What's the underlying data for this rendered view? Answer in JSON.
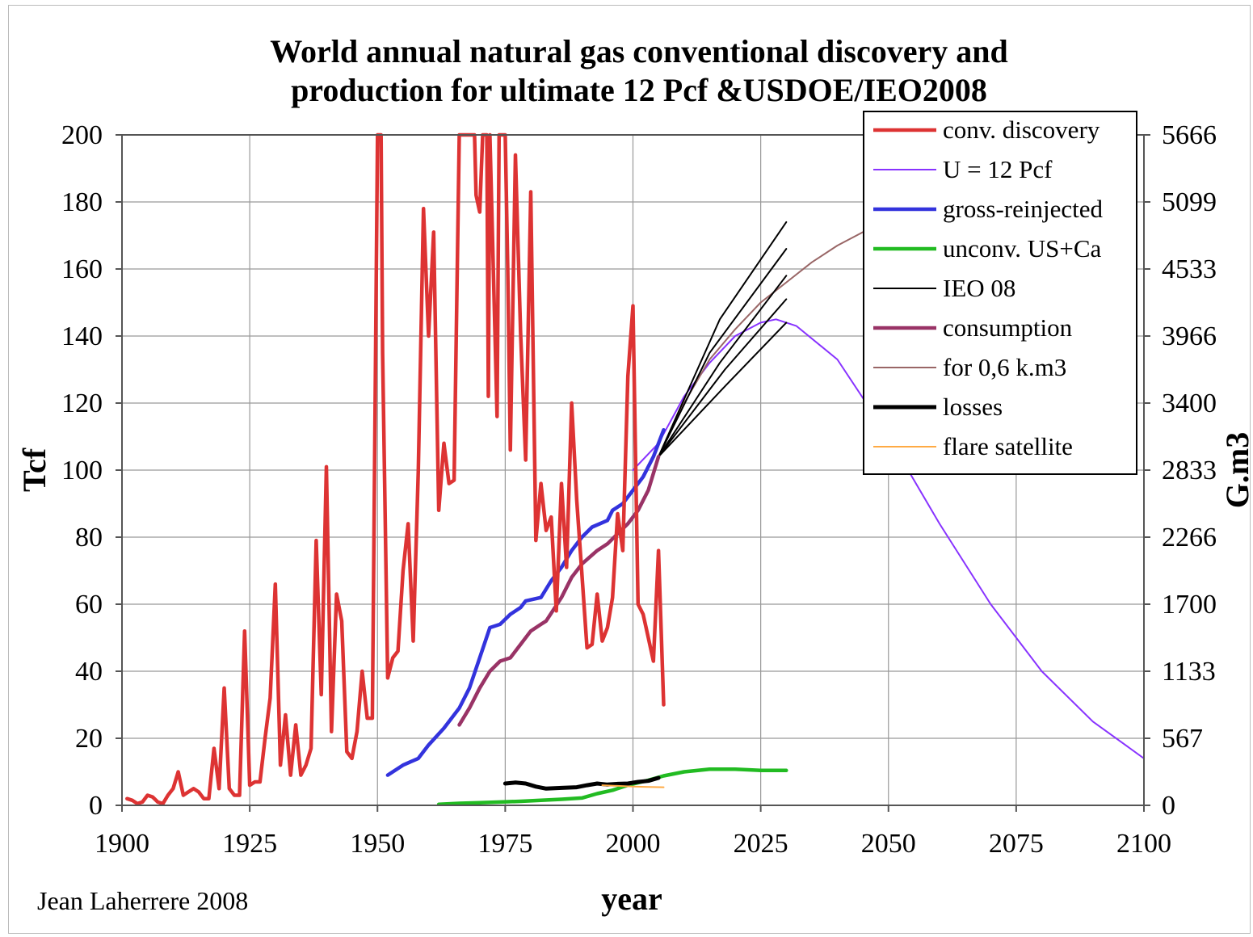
{
  "credit": "Jean Laherrere 2008",
  "chart_data": {
    "type": "line",
    "title": "World annual natural gas conventional discovery and production for ultimate 12 Pcf &USDOE/IEO2008",
    "title_lines": [
      "World annual natural gas conventional discovery and",
      "production for ultimate 12 Pcf &USDOE/IEO2008"
    ],
    "xlabel": "year",
    "ylabel": "Tcf",
    "y2label": "G.m3",
    "xlim": [
      1900,
      2100
    ],
    "ylim": [
      0,
      200
    ],
    "x_ticks": [
      1900,
      1925,
      1950,
      1975,
      2000,
      2025,
      2050,
      2075,
      2100
    ],
    "y_ticks": [
      0,
      20,
      40,
      60,
      80,
      100,
      120,
      140,
      160,
      180,
      200
    ],
    "y2_ticks": [
      "0",
      "567",
      "1133",
      "1700",
      "2266",
      "2833",
      "3400",
      "3966",
      "4533",
      "5099",
      "5666"
    ],
    "grid": true,
    "legend_position": "top-right",
    "series": [
      {
        "name": "conv. discovery",
        "color": "#dd3333",
        "width": 4.5,
        "points": [
          [
            1901,
            2
          ],
          [
            1902,
            1.5
          ],
          [
            1903,
            0.5
          ],
          [
            1904,
            1
          ],
          [
            1905,
            3
          ],
          [
            1906,
            2.5
          ],
          [
            1907,
            1
          ],
          [
            1908,
            0.5
          ],
          [
            1909,
            3
          ],
          [
            1910,
            5
          ],
          [
            1911,
            10
          ],
          [
            1912,
            3
          ],
          [
            1913,
            4
          ],
          [
            1914,
            5
          ],
          [
            1915,
            4
          ],
          [
            1916,
            2
          ],
          [
            1917,
            2
          ],
          [
            1918,
            17
          ],
          [
            1919,
            5
          ],
          [
            1920,
            35
          ],
          [
            1921,
            5
          ],
          [
            1922,
            3
          ],
          [
            1923,
            3
          ],
          [
            1924,
            52
          ],
          [
            1925,
            6
          ],
          [
            1926,
            7
          ],
          [
            1927,
            7
          ],
          [
            1928,
            20
          ],
          [
            1929,
            32
          ],
          [
            1930,
            66
          ],
          [
            1931,
            12
          ],
          [
            1932,
            27
          ],
          [
            1933,
            9
          ],
          [
            1934,
            24
          ],
          [
            1935,
            9
          ],
          [
            1936,
            12
          ],
          [
            1937,
            17
          ],
          [
            1938,
            79
          ],
          [
            1939,
            33
          ],
          [
            1940,
            101
          ],
          [
            1941,
            22
          ],
          [
            1942,
            63
          ],
          [
            1943,
            55
          ],
          [
            1944,
            16
          ],
          [
            1945,
            14
          ],
          [
            1946,
            22
          ],
          [
            1947,
            40
          ],
          [
            1948,
            26
          ],
          [
            1949,
            26
          ],
          [
            1950,
            200
          ],
          [
            1950.7,
            200
          ],
          [
            1951,
            135
          ],
          [
            1952,
            38
          ],
          [
            1953,
            44
          ],
          [
            1954,
            46
          ],
          [
            1955,
            70
          ],
          [
            1956,
            84
          ],
          [
            1957,
            49
          ],
          [
            1958,
            100
          ],
          [
            1959,
            178
          ],
          [
            1960,
            140
          ],
          [
            1961,
            171
          ],
          [
            1962,
            88
          ],
          [
            1963,
            108
          ],
          [
            1964,
            96
          ],
          [
            1965,
            97
          ],
          [
            1966,
            200
          ],
          [
            1969,
            200
          ],
          [
            1969.3,
            182
          ],
          [
            1970,
            177
          ],
          [
            1970.6,
            200
          ],
          [
            1971.4,
            200
          ],
          [
            1971.7,
            122
          ],
          [
            1972,
            200
          ],
          [
            1973.4,
            116
          ],
          [
            1973.8,
            200
          ],
          [
            1975,
            200
          ],
          [
            1975.5,
            160
          ],
          [
            1976,
            106
          ],
          [
            1977,
            194
          ],
          [
            1978,
            141
          ],
          [
            1979,
            103
          ],
          [
            1980,
            183
          ],
          [
            1981,
            79
          ],
          [
            1982,
            96
          ],
          [
            1983,
            82
          ],
          [
            1984,
            86
          ],
          [
            1985,
            58
          ],
          [
            1986,
            96
          ],
          [
            1987,
            71
          ],
          [
            1988,
            120
          ],
          [
            1989,
            91
          ],
          [
            1990,
            69
          ],
          [
            1991,
            47
          ],
          [
            1992,
            48
          ],
          [
            1993,
            63
          ],
          [
            1994,
            49
          ],
          [
            1995,
            53
          ],
          [
            1996,
            62
          ],
          [
            1997,
            87
          ],
          [
            1998,
            76
          ],
          [
            1999,
            128
          ],
          [
            2000,
            149
          ],
          [
            2001,
            60
          ],
          [
            2002,
            57
          ],
          [
            2003,
            50
          ],
          [
            2004,
            43
          ],
          [
            2005,
            76
          ],
          [
            2006,
            30
          ]
        ]
      },
      {
        "name": "U = 12 Pcf",
        "color": "#8833ff",
        "width": 2,
        "points": [
          [
            2000,
            100
          ],
          [
            2005,
            108
          ],
          [
            2010,
            122
          ],
          [
            2015,
            132
          ],
          [
            2020,
            140
          ],
          [
            2025,
            144
          ],
          [
            2028,
            145
          ],
          [
            2032,
            143
          ],
          [
            2040,
            133
          ],
          [
            2050,
            110
          ],
          [
            2060,
            84
          ],
          [
            2070,
            60
          ],
          [
            2080,
            40
          ],
          [
            2090,
            25
          ],
          [
            2100,
            14
          ]
        ]
      },
      {
        "name": "gross-reinjected",
        "color": "#3333dd",
        "width": 4.5,
        "points": [
          [
            1952,
            9
          ],
          [
            1955,
            12
          ],
          [
            1958,
            14
          ],
          [
            1960,
            18
          ],
          [
            1963,
            23
          ],
          [
            1966,
            29
          ],
          [
            1968,
            35
          ],
          [
            1970,
            44
          ],
          [
            1972,
            53
          ],
          [
            1974,
            54
          ],
          [
            1976,
            57
          ],
          [
            1978,
            59
          ],
          [
            1979,
            61
          ],
          [
            1982,
            62
          ],
          [
            1984,
            67
          ],
          [
            1986,
            71
          ],
          [
            1988,
            76
          ],
          [
            1990,
            80
          ],
          [
            1992,
            83
          ],
          [
            1995,
            85
          ],
          [
            1996,
            88
          ],
          [
            1998,
            90
          ],
          [
            2000,
            94
          ],
          [
            2002,
            98
          ],
          [
            2004,
            104
          ],
          [
            2006,
            112
          ]
        ]
      },
      {
        "name": "unconv. US+Ca",
        "color": "#22bb22",
        "width": 4.5,
        "points": [
          [
            1962,
            0.3
          ],
          [
            1966,
            0.6
          ],
          [
            1970,
            0.8
          ],
          [
            1974,
            1
          ],
          [
            1978,
            1.2
          ],
          [
            1982,
            1.5
          ],
          [
            1986,
            1.8
          ],
          [
            1990,
            2.2
          ],
          [
            1993,
            3.5
          ],
          [
            1996,
            4.5
          ],
          [
            1999,
            6
          ],
          [
            2003,
            7.5
          ],
          [
            2006,
            8.8
          ],
          [
            2010,
            10
          ],
          [
            2015,
            10.8
          ],
          [
            2020,
            10.8
          ],
          [
            2025,
            10.4
          ],
          [
            2030,
            10.4
          ]
        ]
      },
      {
        "name": "IEO 08",
        "color": "#000000",
        "width": 2,
        "lines": [
          [
            [
              2005,
              104
            ],
            [
              2017,
              145
            ],
            [
              2030,
              174
            ]
          ],
          [
            [
              2005,
              104
            ],
            [
              2015,
              135
            ],
            [
              2030,
              166
            ]
          ],
          [
            [
              2005,
              104
            ],
            [
              2017,
              132
            ],
            [
              2030,
              158
            ]
          ],
          [
            [
              2005,
              104
            ],
            [
              2018,
              130
            ],
            [
              2030,
              151
            ]
          ],
          [
            [
              2005,
              104
            ],
            [
              2018,
              125
            ],
            [
              2030,
              144
            ]
          ]
        ]
      },
      {
        "name": "consumption",
        "color": "#993366",
        "width": 4.5,
        "points": [
          [
            1966,
            24
          ],
          [
            1968,
            29
          ],
          [
            1970,
            35
          ],
          [
            1972,
            40
          ],
          [
            1974,
            43
          ],
          [
            1976,
            44
          ],
          [
            1978,
            48
          ],
          [
            1980,
            52
          ],
          [
            1982,
            54
          ],
          [
            1983,
            55
          ],
          [
            1986,
            62
          ],
          [
            1988,
            68
          ],
          [
            1990,
            72
          ],
          [
            1993,
            76
          ],
          [
            1995,
            78
          ],
          [
            1997,
            81
          ],
          [
            1999,
            84
          ],
          [
            2001,
            88
          ],
          [
            2003,
            94
          ],
          [
            2005,
            104
          ]
        ]
      },
      {
        "name": "for 0,6 k.m3",
        "color": "#996666",
        "width": 2,
        "points": [
          [
            2005,
            104
          ],
          [
            2010,
            120
          ],
          [
            2015,
            133
          ],
          [
            2020,
            142
          ],
          [
            2025,
            150
          ],
          [
            2030,
            156
          ],
          [
            2035,
            162
          ],
          [
            2040,
            167
          ],
          [
            2045,
            171
          ],
          [
            2050,
            175
          ]
        ]
      },
      {
        "name": "losses",
        "color": "#000000",
        "width": 5,
        "points": [
          [
            1975,
            6.5
          ],
          [
            1977,
            6.8
          ],
          [
            1979,
            6.5
          ],
          [
            1981,
            5.6
          ],
          [
            1983,
            5
          ],
          [
            1986,
            5.2
          ],
          [
            1989,
            5.4
          ],
          [
            1991,
            6
          ],
          [
            1993,
            6.5
          ],
          [
            1995,
            6.2
          ],
          [
            1997,
            6.4
          ],
          [
            1999,
            6.5
          ],
          [
            2001,
            7
          ],
          [
            2003,
            7.3
          ],
          [
            2005,
            8.2
          ]
        ]
      },
      {
        "name": "flare satellite",
        "color": "#ffaa44",
        "width": 2,
        "points": [
          [
            1994,
            6
          ],
          [
            1997,
            5.8
          ],
          [
            2000,
            5.6
          ],
          [
            2003,
            5.5
          ],
          [
            2006,
            5.4
          ]
        ]
      }
    ]
  }
}
